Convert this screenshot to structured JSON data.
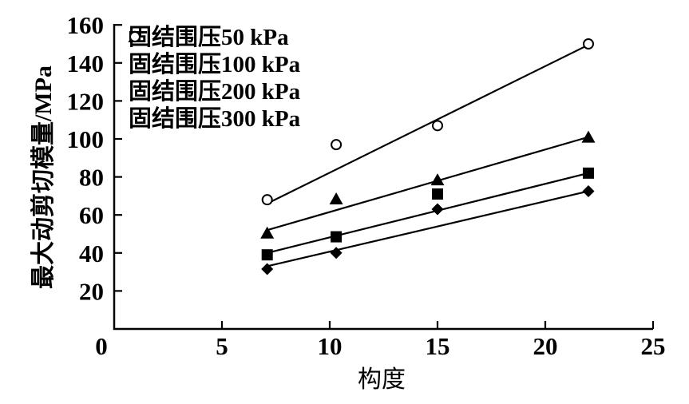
{
  "figure": {
    "background": "#ffffff",
    "foreground": "#000000"
  },
  "chart_data": {
    "type": "scatter",
    "title": "",
    "xlabel": "构度",
    "ylabel": "最大动剪切模量/MPa",
    "xlim": [
      0,
      25
    ],
    "ylim": [
      0,
      160
    ],
    "xticks": [
      0,
      5,
      10,
      15,
      20,
      25
    ],
    "yticks": [
      20,
      40,
      60,
      80,
      100,
      120,
      140,
      160
    ],
    "grid": false,
    "legend_position": "top-left-inside",
    "series": [
      {
        "name": "固结围压50 kPa",
        "marker": "filled-diamond",
        "x": [
          7.1,
          10.3,
          15,
          22
        ],
        "y": [
          31.5,
          40,
          63,
          72.5
        ],
        "fit_line": {
          "x1": 7.1,
          "y1": 33,
          "x2": 22,
          "y2": 72.5
        }
      },
      {
        "name": "固结围压100 kPa",
        "marker": "filled-square",
        "x": [
          7.1,
          10.3,
          15,
          22
        ],
        "y": [
          39,
          48.5,
          71,
          82
        ],
        "fit_line": {
          "x1": 7.1,
          "y1": 40,
          "x2": 22,
          "y2": 82
        }
      },
      {
        "name": "固结围压200 kPa",
        "marker": "filled-triangle",
        "x": [
          7.1,
          10.3,
          15,
          22
        ],
        "y": [
          50.5,
          68.5,
          78.5,
          101
        ],
        "fit_line": {
          "x1": 7.1,
          "y1": 52,
          "x2": 22,
          "y2": 101
        }
      },
      {
        "name": "固结围压300 kPa",
        "marker": "open-circle",
        "x": [
          7.1,
          10.3,
          15,
          22
        ],
        "y": [
          68,
          97,
          107,
          150
        ],
        "fit_line": {
          "x1": 7.1,
          "y1": 66,
          "x2": 22,
          "y2": 149.5
        }
      }
    ]
  }
}
